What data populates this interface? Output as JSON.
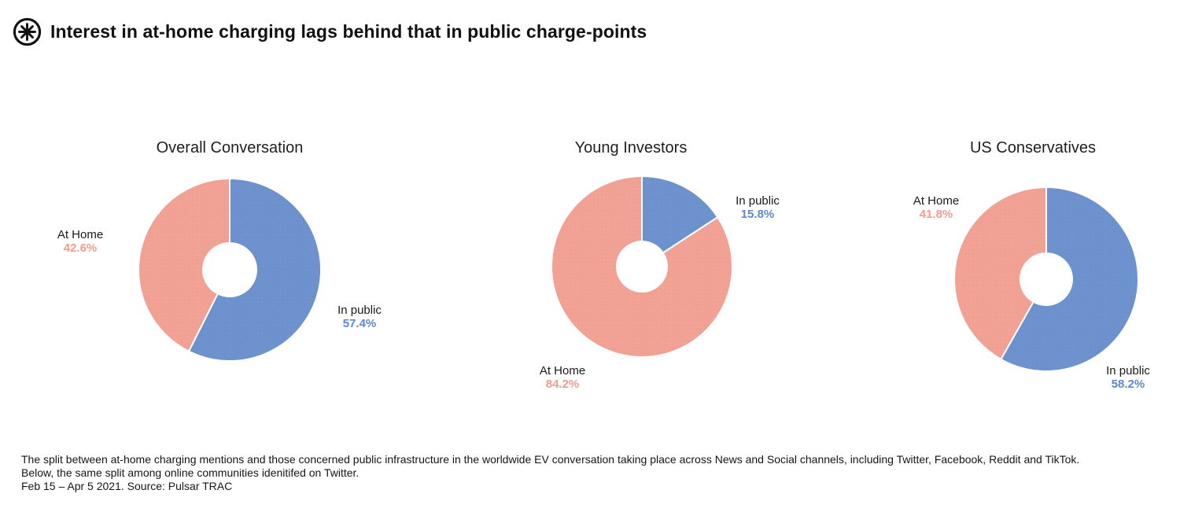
{
  "header": {
    "title": "Interest in at-home charging lags behind that in public charge-points",
    "logo_icon": "pulsar-asterisk-logo"
  },
  "colors": {
    "at_home": "#F2A294",
    "in_public": "#6D92CE",
    "at_home_label": "#F29C8E",
    "in_public_label": "#5D88CB",
    "heading_text": "#111111",
    "body_text": "#1A1A1A"
  },
  "chart_data": [
    {
      "type": "pie",
      "subtype": "donut",
      "title": "Overall Conversation",
      "start_angle_deg": 0,
      "direction": "clockwise",
      "slices": [
        {
          "label": "In public",
          "value": 57.4,
          "display": "57.4%",
          "color_key": "in_public"
        },
        {
          "label": "At Home",
          "value": 42.6,
          "display": "42.6%",
          "color_key": "at_home"
        }
      ]
    },
    {
      "type": "pie",
      "subtype": "donut",
      "title": "Young Investors",
      "start_angle_deg": 0,
      "direction": "clockwise",
      "slices": [
        {
          "label": "In public",
          "value": 15.8,
          "display": "15.8%",
          "color_key": "in_public"
        },
        {
          "label": "At Home",
          "value": 84.2,
          "display": "84.2%",
          "color_key": "at_home"
        }
      ]
    },
    {
      "type": "pie",
      "subtype": "donut",
      "title": "US Conservatives",
      "start_angle_deg": 0,
      "direction": "clockwise",
      "slices": [
        {
          "label": "In public",
          "value": 58.2,
          "display": "58.2%",
          "color_key": "in_public"
        },
        {
          "label": "At Home",
          "value": 41.8,
          "display": "41.8%",
          "color_key": "at_home"
        }
      ]
    }
  ],
  "caption": {
    "lines": [
      "The split between at-home charging mentions and those concerned public infrastructure in the worldwide EV conversation taking place across News and Social channels, including Twitter, Facebook, Reddit and TikTok.",
      "Below, the same split among online communities idenitifed on Twitter.",
      "Feb 15 – Apr 5 2021. Source: Pulsar TRAC"
    ]
  }
}
